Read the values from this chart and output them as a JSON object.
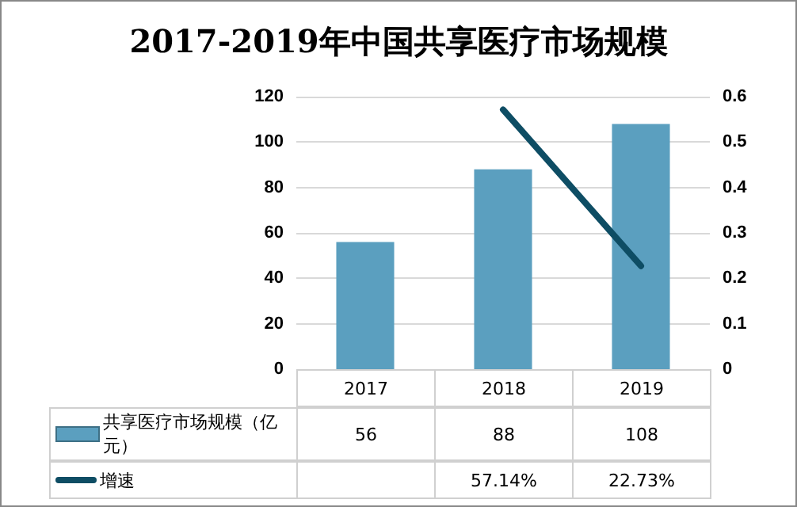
{
  "chart_data": {
    "type": "bar",
    "title": "2017-2019年中国共享医疗市场规模",
    "categories": [
      "2017",
      "2018",
      "2019"
    ],
    "series": [
      {
        "name": "共享医疗市场规模（亿元）",
        "color": "#5b9fbf",
        "values": [
          56,
          88,
          108
        ]
      },
      {
        "name": "增速",
        "type": "line",
        "axis": "y2",
        "color": "#0e4d64",
        "values": [
          null,
          0.5714,
          0.2273
        ],
        "value_labels": [
          null,
          "57.14%",
          "22.73%"
        ]
      }
    ],
    "ylim": [
      0,
      120
    ],
    "yticks": [
      0,
      20,
      40,
      60,
      80,
      100,
      120
    ],
    "y2lim": [
      0,
      0.6
    ],
    "y2ticks": [
      0,
      0.1,
      0.2,
      0.3,
      0.4,
      0.5,
      0.6
    ],
    "grid": "y",
    "legend": "bottom",
    "data_labels": true,
    "marker": "none",
    "line_style": "solid"
  }
}
